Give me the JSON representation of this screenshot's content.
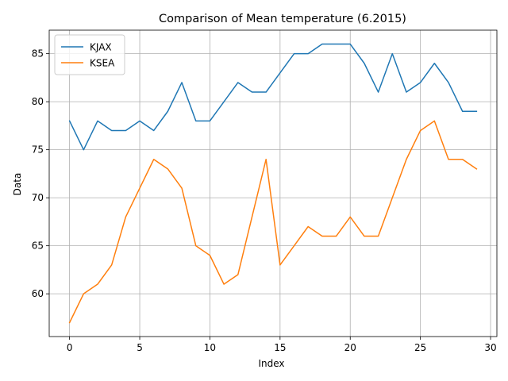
{
  "chart_data": {
    "type": "line",
    "title": "Comparison of Mean temperature (6.2015)",
    "xlabel": "Index",
    "ylabel": "Data",
    "x": [
      0,
      1,
      2,
      3,
      4,
      5,
      6,
      7,
      8,
      9,
      10,
      11,
      12,
      13,
      14,
      15,
      16,
      17,
      18,
      19,
      20,
      21,
      22,
      23,
      24,
      25,
      26,
      27,
      28,
      29
    ],
    "xlim": [
      -1.45,
      30.45
    ],
    "ylim": [
      55.55,
      87.45
    ],
    "xticks": [
      0,
      5,
      10,
      15,
      20,
      25,
      30
    ],
    "yticks": [
      60,
      65,
      70,
      75,
      80,
      85
    ],
    "grid": true,
    "legend_position": "upper-left",
    "series": [
      {
        "name": "KJAX",
        "color": "#1f77b4",
        "values": [
          78,
          75,
          78,
          77,
          77,
          78,
          77,
          79,
          82,
          78,
          78,
          80,
          82,
          81,
          81,
          83,
          85,
          85,
          86,
          86,
          86,
          84,
          81,
          85,
          81,
          82,
          84,
          82,
          79,
          79
        ]
      },
      {
        "name": "KSEA",
        "color": "#ff7f0e",
        "values": [
          57,
          60,
          61,
          63,
          68,
          71,
          74,
          73,
          71,
          65,
          64,
          61,
          62,
          68,
          74,
          63,
          65,
          67,
          66,
          66,
          68,
          66,
          66,
          70,
          74,
          77,
          78,
          74,
          74,
          73
        ]
      }
    ]
  }
}
